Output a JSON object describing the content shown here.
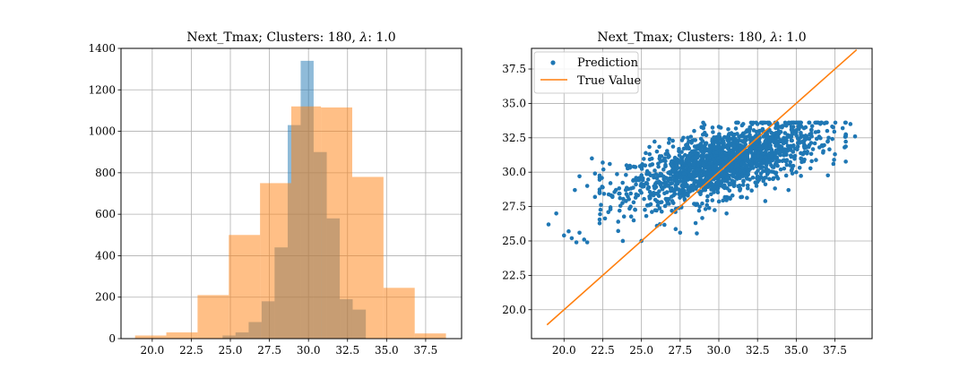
{
  "chart_data": [
    {
      "type": "histogram",
      "title": "Next_Tmax; Clusters: 180, λ: 1.0",
      "title_parts": {
        "prefix": "Next_Tmax; Clusters: 180, ",
        "lambda": "λ",
        "suffix": ": 1.0"
      },
      "xlim": [
        18.0,
        39.8
      ],
      "ylim": [
        0,
        1400
      ],
      "xticks": [
        20.0,
        22.5,
        25.0,
        27.5,
        30.0,
        32.5,
        35.0,
        37.5
      ],
      "xtick_labels": [
        "20.0",
        "22.5",
        "25.0",
        "27.5",
        "30.0",
        "32.5",
        "35.0",
        "37.5"
      ],
      "yticks": [
        0,
        200,
        400,
        600,
        800,
        1000,
        1200,
        1400
      ],
      "ytick_labels": [
        "0",
        "200",
        "400",
        "600",
        "800",
        "1000",
        "1200",
        "1400"
      ],
      "grid": true,
      "series": [
        {
          "bin_edges": [
            24.5,
            25.33,
            26.17,
            27.0,
            27.83,
            28.67,
            29.5,
            30.33,
            31.17,
            32.0,
            32.83,
            33.67
          ],
          "counts": [
            15,
            30,
            80,
            180,
            440,
            1030,
            1340,
            900,
            580,
            190,
            140
          ],
          "color": "#1f77b4",
          "opacity": 0.5
        },
        {
          "bin_edges": [
            18.9,
            20.9,
            22.9,
            24.9,
            26.9,
            28.9,
            30.8,
            32.8,
            34.8,
            36.8,
            38.8
          ],
          "counts": [
            15,
            30,
            210,
            500,
            750,
            1120,
            1115,
            780,
            245,
            25
          ],
          "color": "#ff7f0e",
          "opacity": 0.5
        }
      ]
    },
    {
      "type": "scatter",
      "title": "Next_Tmax; Clusters: 180, λ: 1.0",
      "title_parts": {
        "prefix": "Next_Tmax; Clusters: 180, ",
        "lambda": "λ",
        "suffix": ": 1.0"
      },
      "xlim": [
        17.9,
        39.9
      ],
      "ylim": [
        17.9,
        39.0
      ],
      "xticks": [
        20.0,
        22.5,
        25.0,
        27.5,
        30.0,
        32.5,
        35.0,
        37.5
      ],
      "xtick_labels": [
        "20.0",
        "22.5",
        "25.0",
        "27.5",
        "30.0",
        "32.5",
        "35.0",
        "37.5"
      ],
      "yticks": [
        20.0,
        22.5,
        25.0,
        27.5,
        30.0,
        32.5,
        35.0,
        37.5
      ],
      "ytick_labels": [
        "20.0",
        "22.5",
        "25.0",
        "27.5",
        "30.0",
        "32.5",
        "35.0",
        "37.5"
      ],
      "grid": true,
      "legend": {
        "position": "upper-left",
        "entries": [
          "Prediction",
          "True Value"
        ]
      },
      "series": [
        {
          "name": "Prediction",
          "kind": "points",
          "color": "#1f77b4",
          "description_points": [
            [
              19.0,
              26.2
            ],
            [
              19.5,
              27.0
            ],
            [
              20.0,
              25.4
            ],
            [
              20.3,
              25.7
            ],
            [
              20.5,
              25.2
            ],
            [
              20.8,
              24.9
            ],
            [
              21.0,
              25.6
            ],
            [
              21.3,
              25.1
            ],
            [
              21.5,
              24.9
            ],
            [
              20.7,
              28.7
            ],
            [
              21.0,
              29.7
            ],
            [
              21.5,
              29.0
            ],
            [
              22.0,
              29.9
            ],
            [
              22.0,
              28.2
            ],
            [
              22.5,
              28.9
            ],
            [
              22.5,
              30.7
            ],
            [
              21.8,
              31.0
            ],
            [
              23.0,
              29.2
            ],
            [
              23.0,
              27.3
            ],
            [
              23.5,
              26.4
            ],
            [
              23.8,
              25.0
            ],
            [
              24.0,
              29.8
            ],
            [
              24.0,
              27.9
            ],
            [
              24.5,
              26.5
            ],
            [
              24.5,
              30.4
            ],
            [
              25.0,
              25.0
            ],
            [
              25.0,
              28.5
            ],
            [
              25.5,
              29.9
            ],
            [
              25.5,
              27.6
            ],
            [
              26.0,
              31.5
            ],
            [
              26.0,
              26.1
            ],
            [
              26.5,
              29.2
            ],
            [
              26.5,
              31.0
            ],
            [
              27.0,
              30.8
            ],
            [
              27.0,
              27.9
            ],
            [
              27.5,
              25.6
            ],
            [
              27.5,
              29.6
            ],
            [
              28.0,
              32.5
            ],
            [
              28.0,
              28.3
            ],
            [
              28.5,
              31.4
            ],
            [
              28.5,
              26.3
            ],
            [
              29.0,
              30.1
            ],
            [
              29.0,
              33.2
            ],
            [
              29.5,
              28.4
            ],
            [
              29.5,
              31.9
            ],
            [
              30.0,
              29.6
            ],
            [
              30.0,
              33.3
            ],
            [
              30.5,
              30.7
            ],
            [
              30.5,
              27.0
            ],
            [
              31.0,
              31.9
            ],
            [
              31.0,
              29.1
            ],
            [
              31.5,
              33.4
            ],
            [
              31.5,
              28.2
            ],
            [
              32.0,
              30.8
            ],
            [
              32.0,
              32.7
            ],
            [
              32.5,
              29.3
            ],
            [
              32.5,
              33.5
            ],
            [
              33.0,
              31.1
            ],
            [
              33.0,
              27.9
            ],
            [
              33.5,
              32.4
            ],
            [
              33.5,
              29.5
            ],
            [
              34.0,
              33.3
            ],
            [
              34.0,
              30.2
            ],
            [
              34.5,
              31.8
            ],
            [
              34.5,
              28.7
            ],
            [
              35.0,
              32.9
            ],
            [
              35.0,
              30.0
            ],
            [
              35.5,
              31.4
            ],
            [
              35.5,
              33.2
            ],
            [
              36.0,
              30.8
            ],
            [
              36.0,
              32.6
            ],
            [
              36.5,
              31.8
            ],
            [
              37.0,
              33.0
            ],
            [
              37.5,
              31.3
            ],
            [
              38.0,
              33.2
            ],
            [
              38.5,
              33.5
            ],
            [
              38.8,
              32.6
            ],
            [
              37.4,
              30.6
            ]
          ]
        },
        {
          "name": "True Value",
          "kind": "line",
          "color": "#ff7f0e",
          "x": [
            18.9,
            38.9
          ],
          "y": [
            18.9,
            38.9
          ]
        }
      ]
    }
  ]
}
